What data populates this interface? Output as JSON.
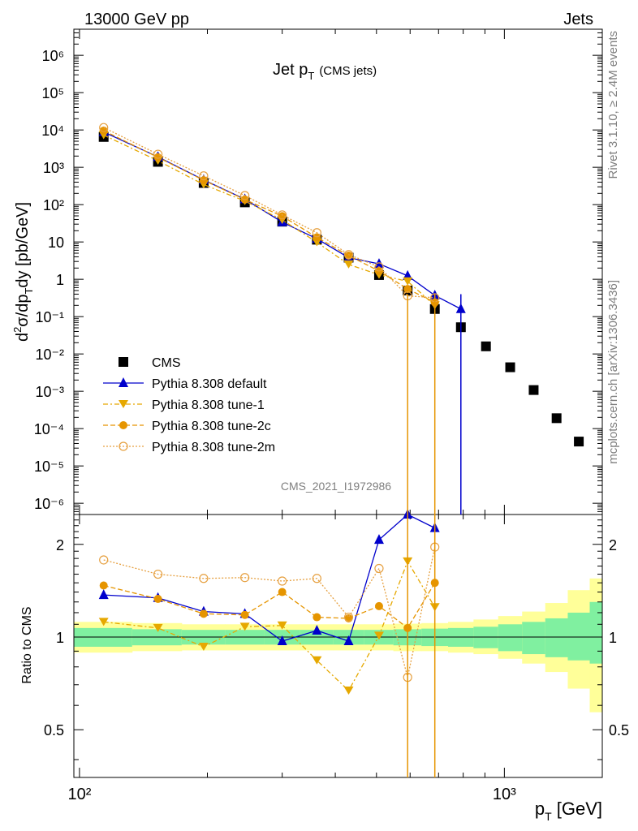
{
  "header": {
    "left": "13000 GeV pp",
    "right": "Jets"
  },
  "side_labels": {
    "rivet": "Rivet 3.1.10, ≥ 2.4M events",
    "mcplots": "mcplots.cern.ch [arXiv:1306.3436]"
  },
  "plot_title": {
    "main": "Jet p",
    "sub": "T",
    "extra": "(CMS jets)"
  },
  "watermark": "CMS_2021_I1972986",
  "axes": {
    "ylabel_top": "d²σ/dp_T dy [pb/GeV]",
    "ylabel_bottom": "Ratio to CMS",
    "xlabel": "p_T [GeV]",
    "x_ticks": [
      "10²",
      "10³"
    ],
    "top_ticks": [
      "10⁻⁶",
      "10⁻⁵",
      "10⁻⁴",
      "10⁻³",
      "10⁻²",
      "10⁻¹",
      "1",
      "10",
      "10²",
      "10³",
      "10⁴",
      "10⁵",
      "10⁶"
    ],
    "ratio_ticks": [
      "0.5",
      "1",
      "2"
    ]
  },
  "legend": [
    {
      "label": "CMS",
      "color": "#000000",
      "marker": "square"
    },
    {
      "label": "Pythia 8.308 default",
      "color": "#0000cc",
      "marker": "triangle-up"
    },
    {
      "label": "Pythia 8.308 tune-1",
      "color": "#e6a800",
      "marker": "triangle-down"
    },
    {
      "label": "Pythia 8.308 tune-2c",
      "color": "#e69500",
      "marker": "circle"
    },
    {
      "label": "Pythia 8.308 tune-2m",
      "color": "#e6a040",
      "marker": "open-circle"
    }
  ],
  "chart_data": {
    "type": "scatter",
    "x_scale": "log",
    "y_scale": "log",
    "xlim": [
      97,
      1700
    ],
    "ylim": [
      5e-07,
      5000000
    ],
    "ratio_ylim": [
      0.35,
      2.5
    ],
    "series": [
      {
        "name": "CMS",
        "x": [
          114,
          153,
          196,
          245,
          300,
          362,
          430,
          507,
          592,
          686,
          790,
          905,
          1032,
          1172,
          1327,
          1497
        ],
        "y": [
          6500,
          1400,
          380,
          115,
          35,
          11.5,
          3.8,
          1.3,
          0.5,
          0.16,
          0.052,
          0.016,
          0.0044,
          0.00108,
          0.00019,
          4.5e-05
        ]
      },
      {
        "name": "Pythia 8.308 default",
        "x": [
          114,
          153,
          196,
          245,
          300,
          362,
          430,
          507,
          592,
          686,
          790
        ],
        "y": [
          8800,
          1900,
          460,
          140,
          34,
          12.2,
          3.8,
          2.6,
          1.24,
          0.37,
          0.16
        ],
        "ratio": [
          1.37,
          1.34,
          1.21,
          1.19,
          0.97,
          1.05,
          0.97,
          2.07,
          2.5,
          2.26,
          null
        ]
      },
      {
        "name": "Pythia 8.308 tune-1",
        "x": [
          114,
          153,
          196,
          245,
          300,
          362,
          430,
          507,
          592,
          686
        ],
        "y": [
          7300,
          1500,
          345,
          125,
          39,
          9.8,
          2.5,
          1.32,
          0.88,
          0.2
        ],
        "ratio": [
          1.12,
          1.07,
          0.93,
          1.08,
          1.09,
          0.84,
          0.67,
          1.01,
          1.76,
          1.25
        ]
      },
      {
        "name": "Pythia 8.308 tune-2c",
        "x": [
          114,
          153,
          196,
          245,
          300,
          362,
          430,
          507,
          592,
          686
        ],
        "y": [
          9600,
          1850,
          450,
          137,
          49,
          13.3,
          4.3,
          1.67,
          0.55,
          0.24
        ],
        "ratio": [
          1.47,
          1.33,
          1.19,
          1.18,
          1.4,
          1.16,
          1.15,
          1.26,
          1.07,
          1.5
        ]
      },
      {
        "name": "Pythia 8.308 tune-2m",
        "x": [
          114,
          153,
          196,
          245,
          300,
          362,
          430,
          507,
          592,
          686
        ],
        "y": [
          11600,
          2240,
          590,
          175,
          53,
          17.7,
          4.6,
          2.15,
          0.36,
          0.32
        ],
        "ratio": [
          1.78,
          1.6,
          1.55,
          1.56,
          1.52,
          1.55,
          1.16,
          1.67,
          0.74,
          1.96
        ]
      }
    ],
    "ratio_band": {
      "x_edges": [
        97,
        133,
        174,
        220,
        272,
        330,
        395,
        468,
        548,
        638,
        737,
        846,
        967,
        1101,
        1248,
        1410,
        1588,
        1700
      ],
      "green_low": [
        0.93,
        0.94,
        0.945,
        0.945,
        0.945,
        0.945,
        0.945,
        0.945,
        0.94,
        0.935,
        0.93,
        0.92,
        0.9,
        0.88,
        0.86,
        0.84,
        0.82
      ],
      "green_high": [
        1.07,
        1.06,
        1.055,
        1.055,
        1.055,
        1.055,
        1.055,
        1.055,
        1.06,
        1.065,
        1.07,
        1.08,
        1.1,
        1.12,
        1.15,
        1.2,
        1.3
      ],
      "yellow_low": [
        0.89,
        0.9,
        0.905,
        0.905,
        0.905,
        0.905,
        0.905,
        0.905,
        0.9,
        0.9,
        0.89,
        0.88,
        0.85,
        0.82,
        0.77,
        0.68,
        0.57
      ],
      "yellow_high": [
        1.12,
        1.11,
        1.1,
        1.1,
        1.1,
        1.1,
        1.1,
        1.1,
        1.105,
        1.11,
        1.12,
        1.14,
        1.17,
        1.21,
        1.29,
        1.42,
        1.55
      ]
    }
  }
}
